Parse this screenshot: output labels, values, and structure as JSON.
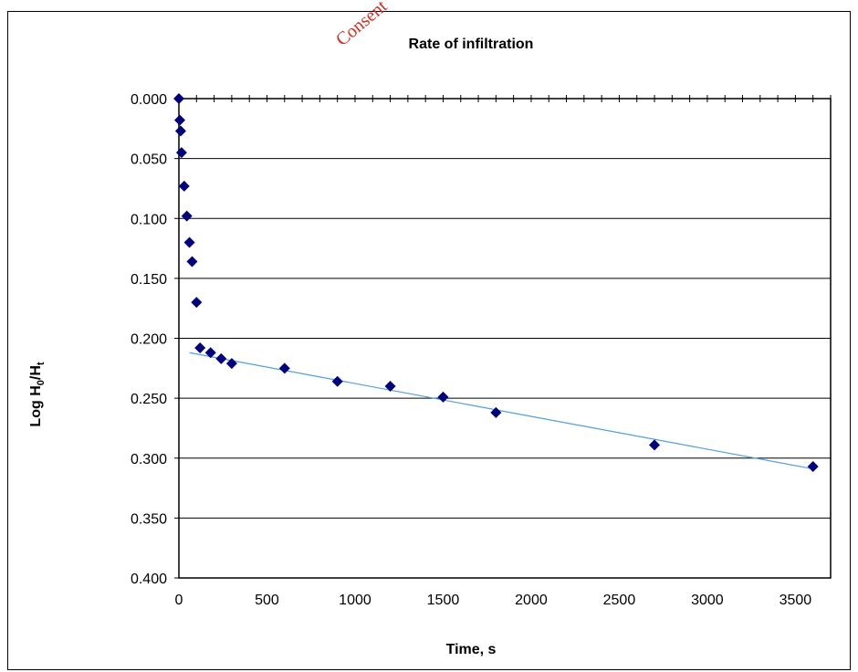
{
  "watermark": "Consent ",
  "chart_data": {
    "type": "scatter",
    "title": "Rate of infiltration",
    "xlabel": "Time, s",
    "ylabel_parts": [
      "Log H",
      "0",
      "/H",
      "t"
    ],
    "xlim": [
      0,
      3700
    ],
    "ylim": [
      0,
      0.4
    ],
    "y_reversed": true,
    "x_ticks": [
      0,
      500,
      1000,
      1500,
      2000,
      2500,
      3000,
      3500
    ],
    "x_tick_labels": [
      "0",
      "500",
      "1000",
      "1500",
      "2000",
      "2500",
      "3000",
      "3500"
    ],
    "y_ticks": [
      0,
      0.05,
      0.1,
      0.15,
      0.2,
      0.25,
      0.3,
      0.35,
      0.4
    ],
    "y_tick_labels": [
      "0.000",
      "0.050",
      "0.100",
      "0.150",
      "0.200",
      "0.250",
      "0.300",
      "0.350",
      "0.400"
    ],
    "grid": "horizontal",
    "marker_color": "#00007f",
    "trendline_color": "#4f9fd9",
    "series": [
      {
        "x": [
          0,
          5,
          10,
          15,
          30,
          45,
          60,
          75,
          100,
          120,
          180,
          240,
          300,
          600,
          900,
          1200,
          1500,
          1800,
          2700,
          3600
        ],
        "y": [
          0.0,
          0.018,
          0.027,
          0.045,
          0.073,
          0.098,
          0.12,
          0.136,
          0.17,
          0.208,
          0.212,
          0.217,
          0.221,
          0.225,
          0.236,
          0.24,
          0.249,
          0.262,
          0.289,
          0.307
        ]
      }
    ],
    "trendline": {
      "x": [
        60,
        3600
      ],
      "y": [
        0.212,
        0.309
      ]
    }
  }
}
